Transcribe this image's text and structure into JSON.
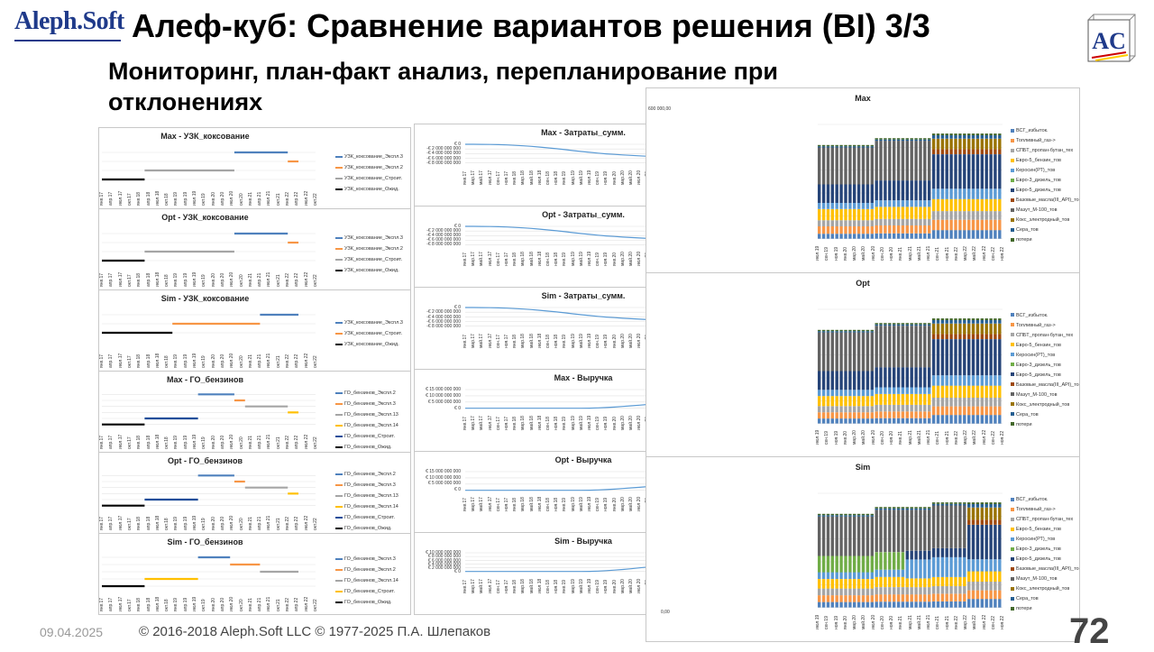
{
  "header": {
    "logo": "Aleph.Soft",
    "title": "Алеф-куб: Сравнение вариантов решения (BI) 3/3",
    "subtitle": "Мониторинг, план-факт анализ, перепланирование при отклонениях",
    "corner_logo": "AC"
  },
  "footer": {
    "date": "09.04.2025",
    "copyright": "© 2016-2018 Aleph.Soft LLC © 1977-2025 П.А. Шлепаков",
    "page": "72"
  },
  "colors": {
    "blue": "#4f81bd",
    "orange": "#f79646",
    "gray": "#a5a5a5",
    "yellow": "#ffc000",
    "darkblue": "#1f4e9a",
    "black": "#000000",
    "line": "#5b9bd5"
  },
  "gantt_ticks": [
    "янв.17",
    "апр.17",
    "июл.17",
    "окт.17",
    "янв.18",
    "апр.18",
    "июл.18",
    "окт.18",
    "янв.19",
    "апр.19",
    "июл.19",
    "окт.19",
    "янв.20",
    "апр.20",
    "июл.20",
    "окт.20",
    "янв.21",
    "апр.21",
    "июл.21",
    "окт.21",
    "янв.22",
    "апр.22",
    "июл.22",
    "окт.22"
  ],
  "line_ticks": [
    "янв.17",
    "мар.17",
    "май.17",
    "июл.17",
    "сен.17",
    "ноя.17",
    "янв.18",
    "мар.18",
    "май.18",
    "июл.18",
    "сен.18",
    "ноя.18",
    "янв.19",
    "мар.19",
    "май.19",
    "июл.19",
    "сен.19",
    "ноя.19",
    "янв.20",
    "мар.20",
    "май.20",
    "июл.20",
    "сен.20",
    "ноя.20",
    "янв.21",
    "мар.21",
    "май.21",
    "июл.21",
    "сен.21",
    "ноя.21",
    "янв.22",
    "мар.22",
    "май.22",
    "июл.22",
    "сен.22",
    "ноя.22"
  ],
  "bar_ticks": [
    "июл.19",
    "сен.19",
    "ноя.19",
    "янв.20",
    "мар.20",
    "май.20",
    "июл.20",
    "сен.20",
    "ноя.20",
    "янв.21",
    "мар.21",
    "май.21",
    "июл.21",
    "сен.21",
    "ноя.21",
    "янв.22",
    "мар.22",
    "май.22",
    "июл.22",
    "сен.22",
    "ноя.22"
  ],
  "gantt_charts": [
    {
      "title": "Max - УЗК_коксование",
      "bars": [
        {
          "name": "УЗК_коксование_Экспл.3",
          "color": "blue",
          "start": 0.62,
          "end": 0.87,
          "row": 0
        },
        {
          "name": "УЗК_коксование_Экспл.2",
          "color": "orange",
          "start": 0.87,
          "end": 0.92,
          "row": 1
        },
        {
          "name": "УЗК_коксование_Строит.",
          "color": "gray",
          "start": 0.2,
          "end": 0.62,
          "row": 2
        },
        {
          "name": "УЗК_коксование_Ожид.",
          "color": "black",
          "start": 0.0,
          "end": 0.2,
          "row": 3
        }
      ]
    },
    {
      "title": "Opt - УЗК_коксование",
      "bars": [
        {
          "name": "УЗК_коксование_Экспл.3",
          "color": "blue",
          "start": 0.62,
          "end": 0.87,
          "row": 0
        },
        {
          "name": "УЗК_коксование_Экспл.2",
          "color": "orange",
          "start": 0.87,
          "end": 0.92,
          "row": 1
        },
        {
          "name": "УЗК_коксование_Строит.",
          "color": "gray",
          "start": 0.2,
          "end": 0.62,
          "row": 2
        },
        {
          "name": "УЗК_коксование_Ожид.",
          "color": "black",
          "start": 0.0,
          "end": 0.2,
          "row": 3
        }
      ]
    },
    {
      "title": "Sim - УЗК_коксование",
      "bars": [
        {
          "name": "УЗК_коксование_Экспл.3",
          "color": "blue",
          "start": 0.74,
          "end": 0.92,
          "row": 0
        },
        {
          "name": "УЗК_коксование_Строит.",
          "color": "orange",
          "start": 0.33,
          "end": 0.74,
          "row": 1
        },
        {
          "name": "УЗК_коксование_Ожид.",
          "color": "black",
          "start": 0.0,
          "end": 0.33,
          "row": 2
        }
      ]
    },
    {
      "title": "Max - ГО_бензинов",
      "bars": [
        {
          "name": "ГО_бензинов_Экспл.2",
          "color": "blue",
          "start": 0.45,
          "end": 0.62,
          "row": 0
        },
        {
          "name": "ГО_бензинов_Экспл.3",
          "color": "orange",
          "start": 0.62,
          "end": 0.67,
          "row": 1
        },
        {
          "name": "ГО_бензинов_Экспл.13",
          "color": "gray",
          "start": 0.67,
          "end": 0.87,
          "row": 2
        },
        {
          "name": "ГО_бензинов_Экспл.14",
          "color": "yellow",
          "start": 0.87,
          "end": 0.92,
          "row": 3
        },
        {
          "name": "ГО_бензинов_Строит.",
          "color": "darkblue",
          "start": 0.2,
          "end": 0.45,
          "row": 4
        },
        {
          "name": "ГО_бензинов_Ожид.",
          "color": "black",
          "start": 0.0,
          "end": 0.2,
          "row": 5
        }
      ]
    },
    {
      "title": "Opt - ГО_бензинов",
      "bars": [
        {
          "name": "ГО_бензинов_Экспл.2",
          "color": "blue",
          "start": 0.45,
          "end": 0.62,
          "row": 0
        },
        {
          "name": "ГО_бензинов_Экспл.3",
          "color": "orange",
          "start": 0.62,
          "end": 0.67,
          "row": 1
        },
        {
          "name": "ГО_бензинов_Экспл.13",
          "color": "gray",
          "start": 0.67,
          "end": 0.87,
          "row": 2
        },
        {
          "name": "ГО_бензинов_Экспл.14",
          "color": "yellow",
          "start": 0.87,
          "end": 0.92,
          "row": 3
        },
        {
          "name": "ГО_бензинов_Строит.",
          "color": "darkblue",
          "start": 0.2,
          "end": 0.45,
          "row": 4
        },
        {
          "name": "ГО_бензинов_Ожид.",
          "color": "black",
          "start": 0.0,
          "end": 0.2,
          "row": 5
        }
      ]
    },
    {
      "title": "Sim - ГО_бензинов",
      "bars": [
        {
          "name": "ГО_бензинов_Экспл.3",
          "color": "blue",
          "start": 0.45,
          "end": 0.6,
          "row": 0
        },
        {
          "name": "ГО_бензинов_Экспл.2",
          "color": "orange",
          "start": 0.6,
          "end": 0.74,
          "row": 1
        },
        {
          "name": "ГО_бензинов_Экспл.14",
          "color": "gray",
          "start": 0.74,
          "end": 0.92,
          "row": 2
        },
        {
          "name": "ГО_бензинов_Строит.",
          "color": "yellow",
          "start": 0.2,
          "end": 0.45,
          "row": 3
        },
        {
          "name": "ГО_бензинов_Ожид.",
          "color": "black",
          "start": 0.0,
          "end": 0.2,
          "row": 4
        }
      ]
    }
  ],
  "line_charts": [
    {
      "title": "Max - Затраты_сумм.",
      "legend": "значение",
      "yticks": [
        "€ 0",
        "-€ 2 000 000 000",
        "-€ 4 000 000 000",
        "-€ 6 000 000 000",
        "-€ 8 000 000 000"
      ],
      "ymin": -8000000000,
      "ymax": 0,
      "values": [
        0,
        -10000000,
        -30000000,
        -80000000,
        -160000000,
        -280000000,
        -450000000,
        -650000000,
        -900000000,
        -1200000000,
        -1550000000,
        -1900000000,
        -2300000000,
        -2700000000,
        -3100000000,
        -3450000000,
        -3800000000,
        -4100000000,
        -4350000000,
        -4550000000,
        -4750000000,
        -4950000000,
        -5150000000,
        -5300000000,
        -5450000000,
        -5580000000,
        -5700000000,
        -5800000000,
        -5880000000,
        -5950000000,
        -6000000000,
        -6050000000,
        -6080000000,
        -6110000000,
        -6130000000,
        -6150000000
      ]
    },
    {
      "title": "Opt - Затраты_сумм.",
      "legend": "значение",
      "yticks": [
        "€ 0",
        "-€ 2 000 000 000",
        "-€ 4 000 000 000",
        "-€ 6 000 000 000",
        "-€ 8 000 000 000"
      ],
      "ymin": -8000000000,
      "ymax": 0,
      "values": [
        0,
        -10000000,
        -30000000,
        -80000000,
        -160000000,
        -280000000,
        -450000000,
        -650000000,
        -900000000,
        -1200000000,
        -1550000000,
        -1900000000,
        -2300000000,
        -2700000000,
        -3100000000,
        -3450000000,
        -3800000000,
        -4100000000,
        -4350000000,
        -4600000000,
        -4800000000,
        -5000000000,
        -5200000000,
        -5380000000,
        -5550000000,
        -5680000000,
        -5800000000,
        -5900000000,
        -5980000000,
        -6050000000,
        -6100000000,
        -6150000000,
        -6180000000,
        -6210000000,
        -6230000000,
        -6250000000
      ]
    },
    {
      "title": "Sim - Затраты_сумм.",
      "legend": "значение",
      "yticks": [
        "€ 0",
        "-€ 2 000 000 000",
        "-€ 4 000 000 000",
        "-€ 6 000 000 000",
        "-€ 8 000 000 000"
      ],
      "ymin": -8000000000,
      "ymax": 0,
      "values": [
        0,
        -10000000,
        -30000000,
        -80000000,
        -160000000,
        -280000000,
        -450000000,
        -650000000,
        -900000000,
        -1200000000,
        -1550000000,
        -1900000000,
        -2300000000,
        -2700000000,
        -3100000000,
        -3450000000,
        -3800000000,
        -4100000000,
        -4350000000,
        -4600000000,
        -4800000000,
        -5000000000,
        -5200000000,
        -5350000000,
        -5500000000,
        -5620000000,
        -5730000000,
        -5820000000,
        -5900000000,
        -5960000000,
        -6010000000,
        -6050000000,
        -6080000000,
        -6100000000,
        -6120000000,
        -6140000000
      ]
    },
    {
      "title": "Max - Выручка",
      "legend": "значение",
      "yticks": [
        "€ 15 000 000 000",
        "€ 10 000 000 000",
        "€ 5 000 000 000",
        "€ 0"
      ],
      "ymin": 0,
      "ymax": 15000000000,
      "values": [
        0,
        0,
        0,
        0,
        0,
        0,
        0,
        0,
        0,
        0,
        0,
        0,
        0,
        0,
        0,
        50000000,
        250000000,
        550000000,
        950000000,
        1400000000,
        1900000000,
        2450000000,
        3000000000,
        3600000000,
        4200000000,
        4800000000,
        5450000000,
        6100000000,
        6750000000,
        7400000000,
        8050000000,
        8700000000,
        9350000000,
        10000000000,
        10650000000,
        11300000000
      ]
    },
    {
      "title": "Opt - Выручка",
      "legend": "значение",
      "yticks": [
        "€ 15 000 000 000",
        "€ 10 000 000 000",
        "€ 5 000 000 000",
        "€ 0"
      ],
      "ymin": 0,
      "ymax": 15000000000,
      "values": [
        0,
        0,
        0,
        0,
        0,
        0,
        0,
        0,
        0,
        0,
        0,
        0,
        0,
        0,
        0,
        50000000,
        250000000,
        550000000,
        950000000,
        1400000000,
        1900000000,
        2400000000,
        2950000000,
        3500000000,
        4100000000,
        4700000000,
        5300000000,
        5900000000,
        6500000000,
        7100000000,
        7700000000,
        8300000000,
        8900000000,
        9500000000,
        10100000000,
        10600000000
      ]
    },
    {
      "title": "Sim - Выручка",
      "legend": "значение",
      "yticks": [
        "€ 10 000 000 000",
        "€ 8 000 000 000",
        "€ 6 000 000 000",
        "€ 4 000 000 000",
        "€ 2 000 000 000",
        "€ 0"
      ],
      "ymin": 0,
      "ymax": 10000000000,
      "values": [
        0,
        0,
        0,
        0,
        0,
        0,
        0,
        0,
        0,
        0,
        0,
        0,
        0,
        0,
        0,
        40000000,
        180000000,
        400000000,
        700000000,
        1050000000,
        1450000000,
        1900000000,
        2350000000,
        2850000000,
        3350000000,
        3900000000,
        4450000000,
        5000000000,
        5550000000,
        6100000000,
        6650000000,
        7200000000,
        7700000000,
        8200000000,
        8700000000,
        9100000000
      ]
    }
  ],
  "bar_charts": [
    {
      "title": "Max",
      "ytop": "600 000,00",
      "legend": [
        "ВСГ_избыток.",
        "Топливный_газ->",
        "СПБТ_пропан-бутан_тех",
        "Евро-5_бензин_тов",
        "Керосин(РТ)_тов",
        "Евро-3_дизель_тов",
        "Евро-5_дизель_тов",
        "Базовые_масла(III_API)_тов",
        "Мазут_М-100_тов",
        "Кокс_электродный_тов",
        "Сера_тов",
        "потери"
      ]
    },
    {
      "title": "Opt",
      "legend": [
        "ВСГ_избыток.",
        "Топливный_газ->",
        "СПБТ_пропан-бутан_тех",
        "Евро-5_бензин_тов",
        "Керосин(РТ)_тов",
        "Евро-3_дизель_тов",
        "Евро-5_дизель_тов",
        "Базовые_масла(III_API)_тов",
        "Мазут_М-100_тов",
        "Кокс_электродный_тов",
        "Сера_тов",
        "потери"
      ]
    },
    {
      "title": "Sim",
      "ybottom": "0,00",
      "legend": [
        "ВСГ_избыток.",
        "Топливный_газ->",
        "СПБТ_пропан-бутан_тех",
        "Евро-5_бензин_тов",
        "Керосин(РТ)_тов",
        "Евро-3_дизель_тов",
        "Евро-5_дизель_тов",
        "Базовые_масла(III_API)_тов",
        "Мазут_М-100_тов",
        "Кокс_электродный_тов",
        "Сера_тов",
        "потери"
      ]
    }
  ],
  "stack_colors": [
    "#4f81bd",
    "#f79646",
    "#a5a5a5",
    "#ffc000",
    "#5b9bd5",
    "#70ad47",
    "#264478",
    "#9e480e",
    "#636363",
    "#997300",
    "#255e91",
    "#43682b"
  ]
}
